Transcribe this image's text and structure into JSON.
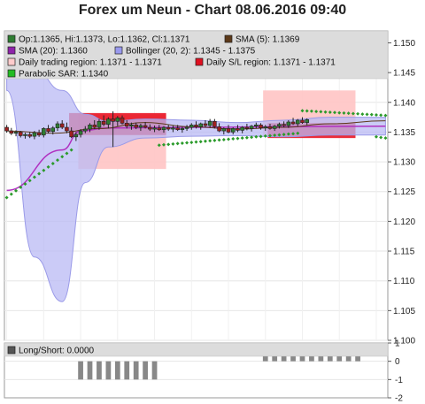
{
  "chart_data": {
    "type": "candlestick",
    "title": "Forex um Neun - Chart 08.06.2016 09:40",
    "main_panel": {
      "ylim": [
        1.1,
        1.152
      ],
      "y_ticks": [
        "1.150",
        "1.145",
        "1.140",
        "1.135",
        "1.130",
        "1.125",
        "1.120",
        "1.115",
        "1.110",
        "1.105",
        "1.100"
      ],
      "legend": [
        {
          "label": "Op:1.1365, Hi:1.1373, Lo:1.1362, Cl:1.1371",
          "color": "#2e7d32"
        },
        {
          "label": "SMA (5): 1.1369",
          "color": "#5d3a1a"
        },
        {
          "label": "SMA (20): 1.1360",
          "color": "#8e24aa"
        },
        {
          "label": "Bollinger (20, 2): 1.1345 - 1.1375",
          "color": "#9999ee"
        },
        {
          "label": "Daily trading region: 1.1371 - 1.1371",
          "color": "#ffcccc"
        },
        {
          "label": "Daily S/L region: 1.1371 - 1.1371",
          "color": "#e01020"
        },
        {
          "label": "Parabolic SAR: 1.1340",
          "color": "#22bb22"
        }
      ],
      "ohlc": [
        [
          1.1358,
          1.1362,
          1.1349,
          1.1352
        ],
        [
          1.1352,
          1.1357,
          1.1345,
          1.1348
        ],
        [
          1.1348,
          1.1353,
          1.1343,
          1.135
        ],
        [
          1.135,
          1.1352,
          1.1341,
          1.1344
        ],
        [
          1.1344,
          1.1349,
          1.1339,
          1.1346
        ],
        [
          1.1346,
          1.135,
          1.134,
          1.1343
        ],
        [
          1.1343,
          1.1352,
          1.1338,
          1.1349
        ],
        [
          1.1349,
          1.1354,
          1.1342,
          1.1345
        ],
        [
          1.1345,
          1.1358,
          1.1341,
          1.1356
        ],
        [
          1.1356,
          1.1362,
          1.1348,
          1.1351
        ],
        [
          1.1351,
          1.136,
          1.1346,
          1.1357
        ],
        [
          1.1357,
          1.1368,
          1.1352,
          1.1364
        ],
        [
          1.1364,
          1.137,
          1.1355,
          1.1358
        ],
        [
          1.1358,
          1.1366,
          1.1348,
          1.1352
        ],
        [
          1.1352,
          1.1358,
          1.134,
          1.1342
        ],
        [
          1.1342,
          1.135,
          1.1335,
          1.1346
        ],
        [
          1.1346,
          1.1355,
          1.1341,
          1.1352
        ],
        [
          1.1352,
          1.136,
          1.1348,
          1.1355
        ],
        [
          1.1355,
          1.1365,
          1.135,
          1.1362
        ],
        [
          1.1362,
          1.137,
          1.1355,
          1.1358
        ],
        [
          1.1358,
          1.1372,
          1.1354,
          1.1368
        ],
        [
          1.1368,
          1.1378,
          1.136,
          1.1363
        ],
        [
          1.1363,
          1.1375,
          1.1356,
          1.1372
        ],
        [
          1.1372,
          1.1385,
          1.1325,
          1.1368
        ],
        [
          1.1368,
          1.1377,
          1.136,
          1.1374
        ],
        [
          1.1374,
          1.1378,
          1.1363,
          1.1365
        ],
        [
          1.1365,
          1.137,
          1.1356,
          1.136
        ],
        [
          1.136,
          1.1366,
          1.1354,
          1.1362
        ],
        [
          1.1362,
          1.1366,
          1.1355,
          1.1358
        ],
        [
          1.1358,
          1.1364,
          1.1352,
          1.1361
        ],
        [
          1.1361,
          1.1367,
          1.1356,
          1.1358
        ],
        [
          1.1358,
          1.1363,
          1.1352,
          1.1355
        ],
        [
          1.1355,
          1.1361,
          1.135,
          1.1357
        ],
        [
          1.1357,
          1.1362,
          1.1352,
          1.1354
        ],
        [
          1.1354,
          1.136,
          1.1349,
          1.1358
        ],
        [
          1.1358,
          1.1362,
          1.1352,
          1.1355
        ],
        [
          1.1355,
          1.1361,
          1.135,
          1.1357
        ],
        [
          1.1357,
          1.1362,
          1.1352,
          1.1354
        ],
        [
          1.1354,
          1.1359,
          1.1349,
          1.1356
        ],
        [
          1.1356,
          1.1362,
          1.1352,
          1.1358
        ],
        [
          1.1358,
          1.1365,
          1.1354,
          1.1362
        ],
        [
          1.1362,
          1.1368,
          1.1356,
          1.1359
        ],
        [
          1.1359,
          1.1366,
          1.1354,
          1.1364
        ],
        [
          1.1364,
          1.137,
          1.1358,
          1.1361
        ],
        [
          1.1361,
          1.1372,
          1.1357,
          1.1368
        ],
        [
          1.1368,
          1.1372,
          1.1356,
          1.1359
        ],
        [
          1.1359,
          1.1365,
          1.135,
          1.1352
        ],
        [
          1.1352,
          1.1358,
          1.1346,
          1.1356
        ],
        [
          1.1356,
          1.1362,
          1.1348,
          1.135
        ],
        [
          1.135,
          1.1358,
          1.1346,
          1.1356
        ],
        [
          1.1356,
          1.1362,
          1.135,
          1.1353
        ],
        [
          1.1353,
          1.136,
          1.1348,
          1.1358
        ],
        [
          1.1358,
          1.1364,
          1.1353,
          1.1356
        ],
        [
          1.1356,
          1.1362,
          1.1351,
          1.136
        ],
        [
          1.136,
          1.1366,
          1.1356,
          1.1362
        ],
        [
          1.1362,
          1.1365,
          1.1354,
          1.1357
        ],
        [
          1.1357,
          1.1362,
          1.1352,
          1.1359
        ],
        [
          1.1359,
          1.1364,
          1.1354,
          1.1356
        ],
        [
          1.1356,
          1.1362,
          1.1352,
          1.136
        ],
        [
          1.136,
          1.1366,
          1.1356,
          1.1363
        ],
        [
          1.1363,
          1.1368,
          1.1358,
          1.1361
        ],
        [
          1.1361,
          1.137,
          1.1357,
          1.1367
        ],
        [
          1.1367,
          1.1374,
          1.1362,
          1.1364
        ],
        [
          1.1364,
          1.1372,
          1.136,
          1.137
        ],
        [
          1.137,
          1.1375,
          1.1364,
          1.1366
        ],
        [
          1.1366,
          1.1373,
          1.1362,
          1.1371
        ]
      ],
      "trading_regions": [
        {
          "from": 16,
          "to": 34,
          "low": 1.1288,
          "high": 1.138
        },
        {
          "from": 56,
          "to": 75,
          "low": 1.1345,
          "high": 1.142
        }
      ],
      "sl_regions": [
        {
          "from": 14,
          "to": 34,
          "low": 1.1345,
          "high": 1.1382
        },
        {
          "from": 57,
          "to": 75,
          "low": 1.134,
          "high": 1.1365
        }
      ],
      "bollinger": {
        "x": [
          0,
          6,
          12,
          17,
          22,
          30,
          40,
          50,
          60,
          70,
          82
        ],
        "upper": [
          1.146,
          1.1455,
          1.142,
          1.138,
          1.1368,
          1.1372,
          1.137,
          1.1366,
          1.137,
          1.1375,
          1.1375
        ],
        "lower": [
          1.142,
          1.114,
          1.1065,
          1.1265,
          1.1325,
          1.134,
          1.1343,
          1.1344,
          1.1342,
          1.1345,
          1.1345
        ]
      },
      "sma20": {
        "x": [
          0,
          12,
          16,
          22,
          40,
          60,
          82
        ],
        "y": [
          1.1252,
          1.132,
          1.1352,
          1.1357,
          1.1358,
          1.1359,
          1.136
        ]
      },
      "sma5": {
        "x": [
          0,
          10,
          20,
          30,
          40,
          50,
          60,
          70,
          82
        ],
        "y": [
          1.1352,
          1.1348,
          1.1356,
          1.1366,
          1.1359,
          1.1355,
          1.1358,
          1.1364,
          1.1369
        ]
      },
      "sar": [
        {
          "from": 0,
          "to": 14,
          "y0": 1.124,
          "y1": 1.132
        },
        {
          "from": 33,
          "to": 63,
          "y0": 1.1328,
          "y1": 1.1348
        },
        {
          "from": 64,
          "to": 82,
          "y0": 1.1386,
          "y1": 1.1378
        },
        {
          "from": 80,
          "to": 82,
          "y0": 1.1342,
          "y1": 1.134
        }
      ]
    },
    "sub_panel": {
      "legend": {
        "label": "Long/Short: 0.0000",
        "color": "#555555"
      },
      "ylim": [
        -2,
        1
      ],
      "y_ticks": [
        "1",
        "0",
        "-1",
        "-2"
      ],
      "bars": [
        {
          "from": 16,
          "to": 33,
          "value": -1
        },
        {
          "from": 56,
          "to": 76,
          "value": 1
        }
      ]
    }
  }
}
